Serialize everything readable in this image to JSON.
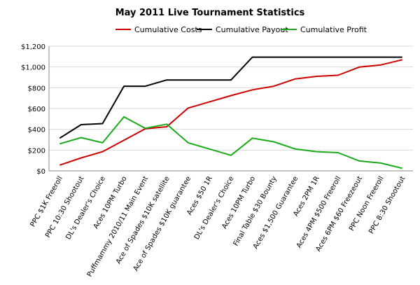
{
  "chart_data": {
    "type": "line",
    "title": "May 2011 Live Tournament Statistics",
    "xlabel": "",
    "ylabel": "",
    "ylim": [
      0,
      1200
    ],
    "yticks": [
      0,
      200,
      400,
      600,
      800,
      1000,
      1200
    ],
    "ytick_labels": [
      "$0",
      "$200",
      "$400",
      "$600",
      "$800",
      "$1,000",
      "$1,200"
    ],
    "grid": true,
    "legend_position": "top",
    "categories": [
      "PPC $1K Freeroll",
      "PPC 10:30 Shootout",
      "DL's Dealer's Choice",
      "Aces 10PM Turbo",
      "Puffmammy 2010/11 Main Event",
      "Ace of Spades $10K satellite",
      "Ace of Spades $10K guarantee",
      "Aces $50 1R",
      "DL's Dealer's Choice",
      "Aces 10PM Turbo",
      "Final Table $30 Bounty",
      "Aces $1,500 Guarantee",
      "Aces 2PM 1R",
      "Aces 4PM $500 Freeroll",
      "Aces 6PM $60 Freezeout",
      "PPC Noon Freeroll",
      "PPC 8:30 Shootout"
    ],
    "series": [
      {
        "name": "Cumulative Costs",
        "color": "#cc0000",
        "values": [
          55,
          125,
          185,
          295,
          405,
          425,
          605,
          665,
          725,
          780,
          815,
          885,
          910,
          920,
          1000,
          1020,
          1070
        ]
      },
      {
        "name": "Cumulative Payout",
        "color": "#000000",
        "values": [
          315,
          445,
          455,
          815,
          815,
          875,
          875,
          875,
          875,
          1095,
          1095,
          1095,
          1095,
          1095,
          1095,
          1095,
          1095
        ]
      },
      {
        "name": "Cumulative Profit",
        "color": "#1aaa1a",
        "values": [
          260,
          320,
          270,
          520,
          410,
          450,
          270,
          210,
          150,
          315,
          280,
          210,
          185,
          175,
          95,
          75,
          25
        ]
      }
    ]
  }
}
